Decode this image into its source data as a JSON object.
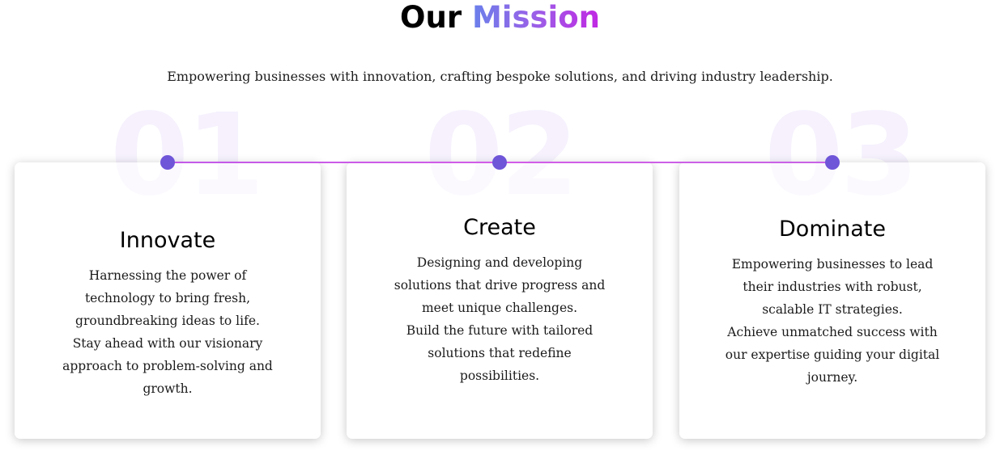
{
  "section": {
    "title_plain": "Our",
    "title_accent": "Mission",
    "subtitle": "Empowering businesses with innovation, crafting bespoke solutions, and driving industry leadership."
  },
  "steps": [
    {
      "number": "01",
      "heading": "Innovate",
      "body_lines": [
        "Harnessing the power of",
        "technology to bring fresh,",
        "groundbreaking ideas to life.",
        "Stay ahead with our visionary",
        "approach to problem-solving and",
        "growth."
      ]
    },
    {
      "number": "02",
      "heading": "Create",
      "body_lines": [
        "Designing and developing",
        "solutions that drive progress and",
        "meet unique challenges.",
        "Build the future with tailored",
        "solutions that redefine",
        "possibilities."
      ]
    },
    {
      "number": "03",
      "heading": "Dominate",
      "body_lines": [
        "Empowering businesses to lead",
        "their industries with robust,",
        "scalable IT strategies.",
        "Achieve unmatched success with",
        "our expertise guiding your digital",
        "journey."
      ]
    }
  ],
  "colors": {
    "accent_gradient_start": "#6a80ea",
    "accent_gradient_end": "#c127e3",
    "timeline_dot": "#6f55d8",
    "timeline_line": "#c25ae8",
    "ghost_number": "#f6f1fd"
  }
}
